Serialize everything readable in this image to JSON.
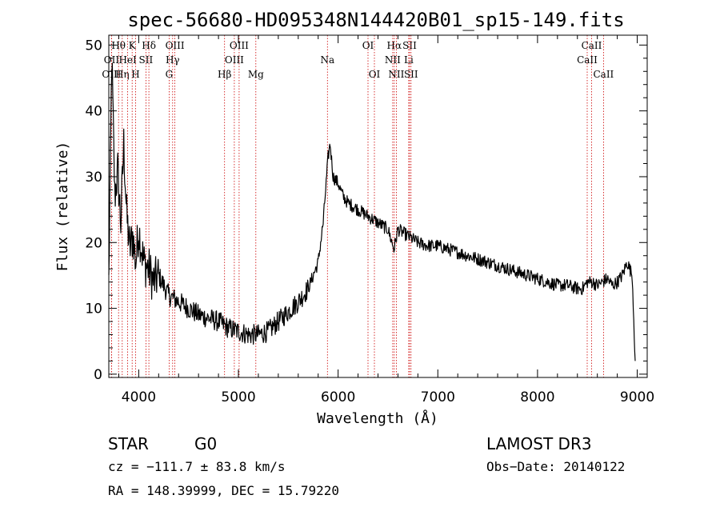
{
  "chart_data": {
    "type": "line",
    "title": "spec-56680-HD095348N144420B01_sp15-149.fits",
    "xlabel": "Wavelength (Å)",
    "ylabel": "Flux (relative)",
    "xlim": [
      3700,
      9100
    ],
    "ylim": [
      -0.5,
      51.5
    ],
    "xticks": [
      4000,
      5000,
      6000,
      7000,
      8000,
      9000
    ],
    "xtick_labels": [
      "4000",
      "5000",
      "6000",
      "7000",
      "8000",
      "9000"
    ],
    "yticks": [
      0,
      10,
      20,
      30,
      40,
      50
    ],
    "ytick_labels": [
      "0",
      "10",
      "20",
      "30",
      "40",
      "50"
    ],
    "grid": false,
    "series": [
      {
        "name": "flux",
        "x": [
          3700,
          3730,
          3760,
          3790,
          3820,
          3850,
          3880,
          3910,
          3940,
          3970,
          4000,
          4050,
          4100,
          4150,
          4200,
          4300,
          4400,
          4500,
          4600,
          4700,
          4800,
          4900,
          5000,
          5100,
          5200,
          5300,
          5400,
          5500,
          5600,
          5700,
          5800,
          5850,
          5900,
          5920,
          5950,
          6000,
          6050,
          6100,
          6200,
          6300,
          6400,
          6500,
          6560,
          6600,
          6700,
          6800,
          6900,
          7000,
          7100,
          7200,
          7300,
          7400,
          7500,
          7600,
          7700,
          7800,
          7900,
          8000,
          8100,
          8200,
          8300,
          8400,
          8450,
          8500,
          8550,
          8600,
          8650,
          8700,
          8750,
          8800,
          8850,
          8900,
          8950,
          8980
        ],
        "y": [
          14,
          48,
          27,
          31,
          23,
          35,
          24,
          19,
          21,
          17,
          22,
          17,
          16,
          14,
          15,
          12,
          11,
          10,
          9,
          8.5,
          8,
          7,
          6.5,
          6,
          6,
          6.5,
          8,
          9.5,
          11,
          13,
          17,
          23,
          33,
          35,
          30,
          29,
          27,
          26,
          25,
          24,
          23,
          22,
          19,
          22,
          21,
          20,
          19.5,
          19.5,
          19,
          18.5,
          18,
          17.5,
          17,
          16.5,
          16,
          15.5,
          15,
          14.5,
          14,
          13.5,
          13.5,
          13,
          13,
          14,
          14,
          13.5,
          14,
          14.5,
          13.5,
          14,
          15,
          17,
          15,
          2
        ]
      }
    ],
    "spectral_lines": [
      {
        "label": "OII",
        "wavelength": 3727,
        "row": 1
      },
      {
        "label": "OIII",
        "wavelength": 3727,
        "row": 2
      },
      {
        "label": "Hθ",
        "wavelength": 3798,
        "row": 0
      },
      {
        "label": "Hη",
        "wavelength": 3835,
        "row": 2
      },
      {
        "label": "HeI",
        "wavelength": 3889,
        "row": 1
      },
      {
        "label": "K",
        "wavelength": 3934,
        "row": 0
      },
      {
        "label": "H",
        "wavelength": 3969,
        "row": 2
      },
      {
        "label": "SII",
        "wavelength": 4072,
        "row": 1
      },
      {
        "label": "Hδ",
        "wavelength": 4102,
        "row": 0
      },
      {
        "label": "OIII",
        "wavelength": 4363,
        "row": 0
      },
      {
        "label": "Hγ",
        "wavelength": 4340,
        "row": 1
      },
      {
        "label": "G",
        "wavelength": 4305,
        "row": 2
      },
      {
        "label": "Hβ",
        "wavelength": 4861,
        "row": 2
      },
      {
        "label": "OIII",
        "wavelength": 5007,
        "row": 0
      },
      {
        "label": "OIII",
        "wavelength": 4959,
        "row": 1
      },
      {
        "label": "Mg",
        "wavelength": 5175,
        "row": 2
      },
      {
        "label": "Na",
        "wavelength": 5893,
        "row": 1
      },
      {
        "label": "OI",
        "wavelength": 6300,
        "row": 0
      },
      {
        "label": "OI",
        "wavelength": 6364,
        "row": 2
      },
      {
        "label": "Hα",
        "wavelength": 6563,
        "row": 0
      },
      {
        "label": "NII",
        "wavelength": 6548,
        "row": 1
      },
      {
        "label": "NII",
        "wavelength": 6584,
        "row": 2
      },
      {
        "label": "SII",
        "wavelength": 6717,
        "row": 0
      },
      {
        "label": "Li",
        "wavelength": 6708,
        "row": 1
      },
      {
        "label": "SII",
        "wavelength": 6731,
        "row": 2
      },
      {
        "label": "CaII",
        "wavelength": 8542,
        "row": 0
      },
      {
        "label": "CaII",
        "wavelength": 8498,
        "row": 1
      },
      {
        "label": "CaII",
        "wavelength": 8662,
        "row": 2
      }
    ]
  },
  "info": {
    "object_class": "STAR",
    "subclass": "G0",
    "survey": "LAMOST DR3",
    "cz": "cz = −111.7 ± 83.8 km/s",
    "obs_date": "Obs−Date: 20140122",
    "coords": "RA = 148.39999, DEC =  15.79220"
  },
  "colors": {
    "spectrum": "#000000",
    "line_marker": "#cc0000",
    "axes": "#000000",
    "background": "#ffffff"
  }
}
